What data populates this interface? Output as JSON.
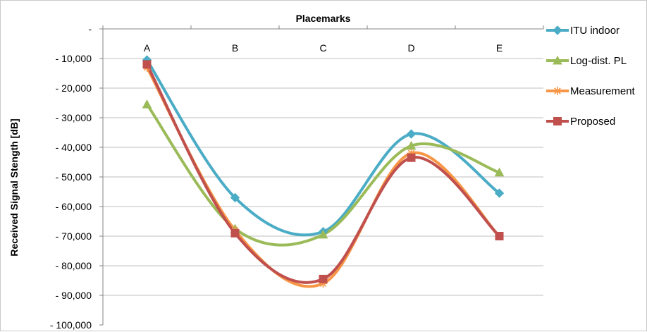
{
  "chart_data": {
    "type": "line",
    "title": "Placemarks",
    "xlabel": "",
    "ylabel": "Received Signal Stength [dB]",
    "categories": [
      "A",
      "B",
      "C",
      "D",
      "E"
    ],
    "y_tick_labels": [
      "-",
      "- 10,000",
      "- 20,000",
      "- 30,000",
      "- 40,000",
      "- 50,000",
      "- 60,000",
      "- 70,000",
      "- 80,000",
      "- 90,000",
      "- 100,000"
    ],
    "ylim": [
      -100,
      0
    ],
    "x_axis_position": "top",
    "grid": true,
    "smooth": true,
    "legend_position": "right",
    "series": [
      {
        "name": "ITU indoor",
        "color": "#4bacc6",
        "marker": "diamond",
        "values": [
          -10.5,
          -57,
          -68.5,
          -35.5,
          -55.5
        ]
      },
      {
        "name": "Log-dist. PL",
        "color": "#9bbb59",
        "marker": "triangle",
        "values": [
          -25.5,
          -67.5,
          -69.5,
          -39.5,
          -48.5
        ]
      },
      {
        "name": "Measurement",
        "color": "#f79646",
        "marker": "star",
        "values": [
          -13,
          -68,
          -86,
          -42,
          -70
        ]
      },
      {
        "name": "Proposed",
        "color": "#c0504d",
        "marker": "square",
        "values": [
          -12,
          -69,
          -84.5,
          -43.5,
          -70
        ]
      }
    ]
  }
}
